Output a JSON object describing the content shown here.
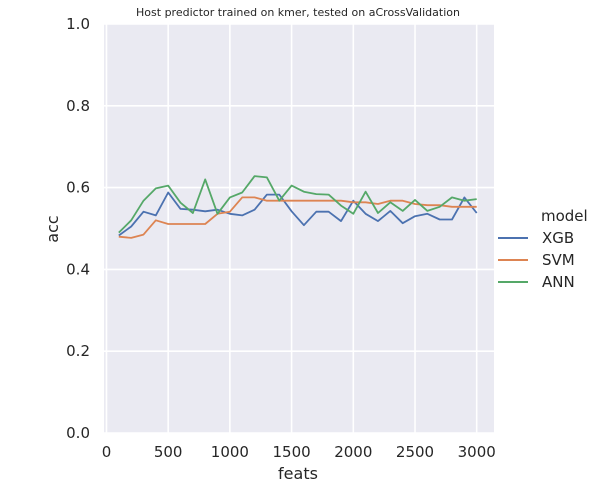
{
  "chart_data": {
    "type": "line",
    "title": "Host predictor trained on kmer, tested on aCrossValidation",
    "xlabel": "feats",
    "ylabel": "acc",
    "xlim": [
      -20,
      3140
    ],
    "ylim": [
      0,
      1
    ],
    "xticks": [
      0,
      500,
      1000,
      1500,
      2000,
      2500,
      3000
    ],
    "yticks": [
      0.0,
      0.2,
      0.4,
      0.6,
      0.8,
      1.0
    ],
    "xtick_labels": [
      "0",
      "500",
      "1000",
      "1500",
      "2000",
      "2500",
      "3000"
    ],
    "ytick_labels": [
      "0.0",
      "0.2",
      "0.4",
      "0.6",
      "0.8",
      "1.0"
    ],
    "grid": true,
    "legend_title": "model",
    "legend_position": "right",
    "x": [
      100,
      200,
      300,
      400,
      500,
      600,
      700,
      800,
      900,
      1000,
      1100,
      1200,
      1300,
      1400,
      1500,
      1600,
      1700,
      1800,
      1900,
      2000,
      2100,
      2200,
      2300,
      2400,
      2500,
      2600,
      2700,
      2800,
      2900,
      3000
    ],
    "series": [
      {
        "name": "XGB",
        "color": "#4c72b0",
        "values": [
          0.483,
          0.505,
          0.541,
          0.532,
          0.588,
          0.548,
          0.546,
          0.542,
          0.546,
          0.536,
          0.532,
          0.546,
          0.583,
          0.583,
          0.542,
          0.508,
          0.541,
          0.541,
          0.518,
          0.568,
          0.536,
          0.518,
          0.543,
          0.513,
          0.53,
          0.536,
          0.522,
          0.522,
          0.576,
          0.538
        ]
      },
      {
        "name": "SVM",
        "color": "#dd8452",
        "values": [
          0.48,
          0.477,
          0.485,
          0.52,
          0.511,
          0.511,
          0.511,
          0.511,
          0.536,
          0.541,
          0.576,
          0.576,
          0.568,
          0.568,
          0.568,
          0.568,
          0.568,
          0.568,
          0.568,
          0.564,
          0.564,
          0.56,
          0.568,
          0.568,
          0.56,
          0.557,
          0.557,
          0.553,
          0.553,
          0.553
        ]
      },
      {
        "name": "ANN",
        "color": "#55a868",
        "values": [
          0.49,
          0.52,
          0.568,
          0.598,
          0.605,
          0.563,
          0.538,
          0.62,
          0.536,
          0.576,
          0.588,
          0.628,
          0.625,
          0.568,
          0.605,
          0.59,
          0.584,
          0.583,
          0.556,
          0.536,
          0.59,
          0.538,
          0.564,
          0.543,
          0.57,
          0.543,
          0.553,
          0.576,
          0.568,
          0.572
        ]
      }
    ]
  }
}
